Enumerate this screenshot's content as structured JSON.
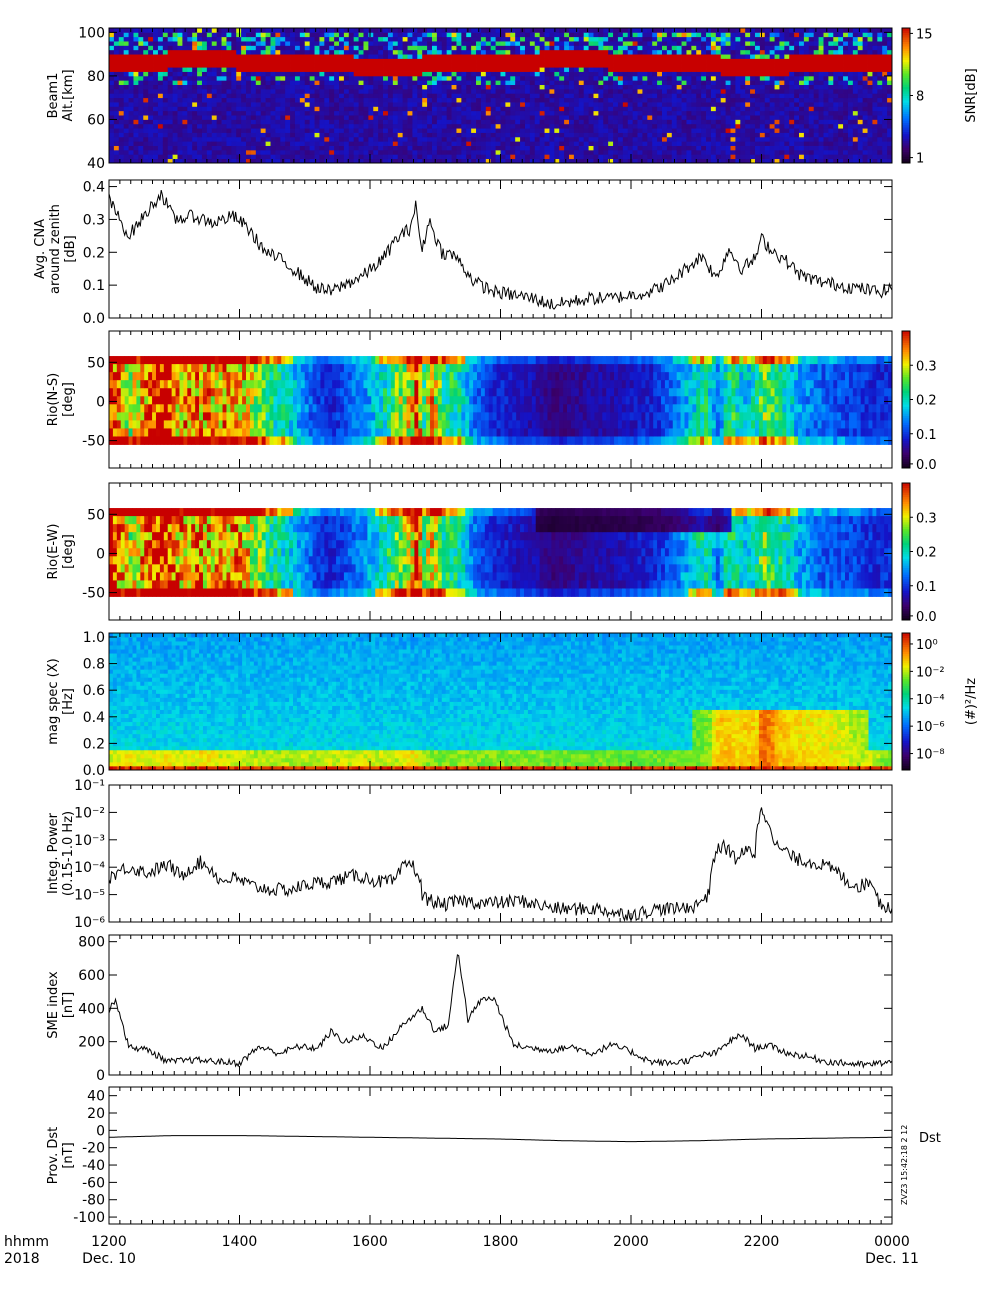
{
  "chart_data": [
    {
      "type": "heatmap",
      "ylabel_lines": [
        "Beam1",
        "Alt.[km]"
      ],
      "yticks": [
        40,
        60,
        80,
        100
      ],
      "ylim": [
        40,
        102
      ],
      "colorbar": {
        "label": "SNR[dB]",
        "ticks": [
          "15",
          "8",
          "1"
        ],
        "range": [
          1,
          15
        ],
        "colormap": "rainbow"
      },
      "rows": [
        {
          "altitude": 84,
          "snr": 15,
          "note": "saturated layer"
        },
        {
          "altitude": 96,
          "snr": 8
        }
      ]
    },
    {
      "type": "line",
      "ylabel_lines": [
        "Avg. CNA",
        "around zenith",
        "[dB]"
      ],
      "yticks": [
        "0.0",
        "0.1",
        "0.2",
        "0.3",
        "0.4"
      ],
      "ylim": [
        0,
        0.42
      ],
      "x_hours": [
        12.0,
        12.3,
        12.5,
        12.8,
        13.0,
        13.3,
        13.6,
        13.9,
        14.1,
        14.4,
        14.7,
        15.0,
        15.2,
        15.4,
        15.6,
        15.9,
        16.2,
        16.4,
        16.6,
        16.7,
        16.8,
        16.9,
        17.1,
        17.3,
        17.6,
        17.9,
        18.2,
        18.5,
        18.8,
        19.1,
        19.4,
        19.7,
        20.0,
        20.3,
        20.6,
        20.9,
        21.1,
        21.3,
        21.5,
        21.7,
        21.9,
        22.0,
        22.2,
        22.4,
        22.6,
        22.9,
        23.2,
        23.5,
        23.8,
        24.0
      ],
      "values": [
        0.36,
        0.25,
        0.3,
        0.38,
        0.3,
        0.31,
        0.29,
        0.31,
        0.28,
        0.2,
        0.17,
        0.12,
        0.09,
        0.08,
        0.1,
        0.13,
        0.18,
        0.24,
        0.27,
        0.34,
        0.2,
        0.3,
        0.2,
        0.19,
        0.11,
        0.08,
        0.07,
        0.06,
        0.04,
        0.05,
        0.06,
        0.06,
        0.07,
        0.08,
        0.11,
        0.16,
        0.19,
        0.12,
        0.21,
        0.15,
        0.18,
        0.24,
        0.2,
        0.17,
        0.13,
        0.11,
        0.1,
        0.09,
        0.08,
        0.09
      ]
    },
    {
      "type": "heatmap",
      "ylabel_lines": [
        "Rio(N-S)",
        "[deg]"
      ],
      "yticks": [
        "50",
        "0",
        "-50"
      ],
      "ylim": [
        -85,
        90
      ],
      "colorbar": {
        "ticks": [
          "0.3",
          "0.2",
          "0.1",
          "0.0"
        ],
        "range": [
          0,
          0.38
        ],
        "colormap": "rainbow"
      }
    },
    {
      "type": "heatmap",
      "ylabel_lines": [
        "Rio(E-W)",
        "[deg]"
      ],
      "yticks": [
        "50",
        "0",
        "-50"
      ],
      "ylim": [
        -85,
        90
      ],
      "colorbar": {
        "ticks": [
          "0.3",
          "0.2",
          "0.1",
          "0.0"
        ],
        "range": [
          0,
          0.38
        ],
        "colormap": "rainbow"
      }
    },
    {
      "type": "heatmap",
      "ylabel_lines": [
        "mag spec (X)",
        "[Hz]"
      ],
      "yticks": [
        "0.0",
        "0.2",
        "0.4",
        "0.6",
        "0.8",
        "1.0"
      ],
      "ylim": [
        0,
        1.03
      ],
      "colorbar": {
        "label": "(#)²/Hz",
        "ticks": [
          "10⁰",
          "10⁻²",
          "10⁻⁴",
          "10⁻⁶",
          "10⁻⁸"
        ],
        "log_range": [
          -9,
          1
        ],
        "colormap": "rainbow"
      }
    },
    {
      "type": "line",
      "ylabel_lines": [
        "Integ. Power",
        "(0.15-1.0 Hz)"
      ],
      "yticks": [
        "10⁻⁶",
        "10⁻⁵",
        "10⁻⁴",
        "10⁻³",
        "10⁻²",
        "10⁻¹"
      ],
      "yscale": "log",
      "ylim": [
        1e-06,
        0.1
      ],
      "x_hours": [
        12.0,
        12.3,
        12.6,
        12.9,
        13.1,
        13.4,
        13.7,
        13.9,
        14.2,
        14.5,
        14.8,
        15.1,
        15.4,
        15.8,
        16.1,
        16.4,
        16.6,
        16.8,
        17.1,
        17.4,
        17.7,
        18.0,
        18.3,
        18.6,
        18.9,
        19.2,
        19.5,
        19.8,
        20.1,
        20.4,
        20.7,
        21.0,
        21.2,
        21.4,
        21.6,
        21.8,
        21.9,
        22.0,
        22.2,
        22.5,
        22.8,
        23.1,
        23.3,
        23.5,
        23.7,
        23.8,
        24.0
      ],
      "values": [
        4e-05,
        0.0001,
        6e-05,
        0.00012,
        4e-05,
        0.00015,
        3e-05,
        4e-05,
        2e-05,
        1.5e-05,
        1.5e-05,
        2.5e-05,
        3e-05,
        5e-05,
        3e-05,
        3e-05,
        0.00015,
        8e-06,
        4e-06,
        6e-06,
        5e-06,
        5e-06,
        6e-06,
        4e-06,
        3e-06,
        3e-06,
        3e-06,
        2e-06,
        2e-06,
        3e-06,
        3e-06,
        4e-06,
        1e-05,
        0.0006,
        0.0002,
        0.0004,
        0.0003,
        0.01,
        0.0006,
        0.0002,
        0.00015,
        8e-05,
        3e-05,
        2e-05,
        3e-05,
        5e-06,
        3e-06
      ]
    },
    {
      "type": "line",
      "ylabel_lines": [
        "SME index",
        "[nT]"
      ],
      "yticks": [
        "0",
        "200",
        "400",
        "600",
        "800"
      ],
      "ylim": [
        0,
        840
      ],
      "x_hours": [
        12.0,
        12.1,
        12.3,
        12.6,
        12.9,
        13.3,
        13.7,
        14.0,
        14.3,
        14.6,
        14.9,
        15.2,
        15.4,
        15.6,
        15.9,
        16.2,
        16.5,
        16.8,
        17.0,
        17.2,
        17.35,
        17.5,
        17.7,
        17.9,
        18.2,
        18.5,
        18.8,
        19.1,
        19.4,
        19.7,
        20.0,
        20.3,
        20.6,
        20.9,
        21.1,
        21.3,
        21.5,
        21.7,
        21.9,
        22.1,
        22.4,
        22.7,
        23.0,
        23.3,
        23.6,
        24.0
      ],
      "values": [
        380,
        460,
        170,
        150,
        80,
        90,
        80,
        70,
        170,
        130,
        170,
        160,
        260,
        200,
        230,
        160,
        300,
        400,
        260,
        300,
        750,
        330,
        450,
        460,
        180,
        160,
        150,
        170,
        130,
        180,
        140,
        80,
        70,
        90,
        120,
        130,
        200,
        240,
        160,
        180,
        130,
        110,
        80,
        70,
        60,
        80
      ]
    },
    {
      "type": "line",
      "ylabel_lines": [
        "Prov. Dst",
        "[nT]"
      ],
      "yticks": [
        "40",
        "20",
        "0",
        "-20",
        "-40",
        "-60",
        "-80",
        "-100"
      ],
      "ylim": [
        -108,
        50
      ],
      "x_hours": [
        12.0,
        13.0,
        14.0,
        15.0,
        16.0,
        17.0,
        18.0,
        19.0,
        20.0,
        21.0,
        22.0,
        23.0,
        24.0
      ],
      "values": [
        -8,
        -6,
        -6,
        -7,
        -8,
        -9,
        -10,
        -12,
        -13,
        -12,
        -10,
        -9,
        -8
      ],
      "series_label": "Dst",
      "stamp": "ZVZ3  15:42:18  2 12",
      "xticks": [
        "1200",
        "1400",
        "1600",
        "1800",
        "2000",
        "2200",
        "0000"
      ],
      "xaxis_time_label": "hhmm",
      "xaxis_year_label": "2018",
      "start_date": "Dec. 10",
      "end_date": "Dec. 11"
    }
  ]
}
